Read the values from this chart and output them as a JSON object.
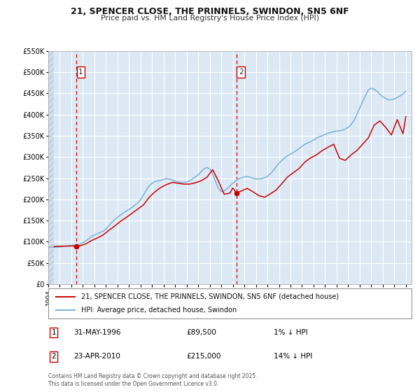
{
  "title_line1": "21, SPENCER CLOSE, THE PRINNELS, SWINDON, SN5 6NF",
  "title_line2": "Price paid vs. HM Land Registry's House Price Index (HPI)",
  "background_color": "#ffffff",
  "plot_bg_color": "#dce9f5",
  "grid_color": "#ffffff",
  "property_color": "#cc0000",
  "hpi_color": "#7ab0d4",
  "property_label": "21, SPENCER CLOSE, THE PRINNELS, SWINDON, SN5 6NF (detached house)",
  "hpi_label": "HPI: Average price, detached house, Swindon",
  "sale1_label": "1",
  "sale1_date": "31-MAY-1996",
  "sale1_price": "£89,500",
  "sale1_hpi": "1% ↓ HPI",
  "sale1_x": 1996.42,
  "sale1_y": 89500,
  "sale2_label": "2",
  "sale2_date": "23-APR-2010",
  "sale2_price": "£215,000",
  "sale2_hpi": "14% ↓ HPI",
  "sale2_x": 2010.31,
  "sale2_y": 215000,
  "vline1_x": 1996.42,
  "vline2_x": 2010.31,
  "ylim": [
    0,
    550000
  ],
  "xlim": [
    1994.0,
    2025.5
  ],
  "yticks": [
    0,
    50000,
    100000,
    150000,
    200000,
    250000,
    300000,
    350000,
    400000,
    450000,
    500000,
    550000
  ],
  "ytick_labels": [
    "£0",
    "£50K",
    "£100K",
    "£150K",
    "£200K",
    "£250K",
    "£300K",
    "£350K",
    "£400K",
    "£450K",
    "£500K",
    "£550K"
  ],
  "footer": "Contains HM Land Registry data © Crown copyright and database right 2025.\nThis data is licensed under the Open Government Licence v3.0.",
  "hpi_data_x": [
    1994.0,
    1994.25,
    1994.5,
    1994.75,
    1995.0,
    1995.25,
    1995.5,
    1995.75,
    1996.0,
    1996.25,
    1996.5,
    1996.75,
    1997.0,
    1997.25,
    1997.5,
    1997.75,
    1998.0,
    1998.25,
    1998.5,
    1998.75,
    1999.0,
    1999.25,
    1999.5,
    1999.75,
    2000.0,
    2000.25,
    2000.5,
    2000.75,
    2001.0,
    2001.25,
    2001.5,
    2001.75,
    2002.0,
    2002.25,
    2002.5,
    2002.75,
    2003.0,
    2003.25,
    2003.5,
    2003.75,
    2004.0,
    2004.25,
    2004.5,
    2004.75,
    2005.0,
    2005.25,
    2005.5,
    2005.75,
    2006.0,
    2006.25,
    2006.5,
    2006.75,
    2007.0,
    2007.25,
    2007.5,
    2007.75,
    2008.0,
    2008.25,
    2008.5,
    2008.75,
    2009.0,
    2009.25,
    2009.5,
    2009.75,
    2010.0,
    2010.25,
    2010.5,
    2010.75,
    2011.0,
    2011.25,
    2011.5,
    2011.75,
    2012.0,
    2012.25,
    2012.5,
    2012.75,
    2013.0,
    2013.25,
    2013.5,
    2013.75,
    2014.0,
    2014.25,
    2014.5,
    2014.75,
    2015.0,
    2015.25,
    2015.5,
    2015.75,
    2016.0,
    2016.25,
    2016.5,
    2016.75,
    2017.0,
    2017.25,
    2017.5,
    2017.75,
    2018.0,
    2018.25,
    2018.5,
    2018.75,
    2019.0,
    2019.25,
    2019.5,
    2019.75,
    2020.0,
    2020.25,
    2020.5,
    2020.75,
    2021.0,
    2021.25,
    2021.5,
    2021.75,
    2022.0,
    2022.25,
    2022.5,
    2022.75,
    2023.0,
    2023.25,
    2023.5,
    2023.75,
    2024.0,
    2024.25,
    2024.5,
    2024.75,
    2025.0
  ],
  "hpi_data_y": [
    88000,
    87500,
    87000,
    87500,
    88000,
    88500,
    89500,
    90500,
    91500,
    92000,
    93000,
    95000,
    98000,
    102000,
    107000,
    112000,
    116000,
    119000,
    122000,
    125000,
    130000,
    138000,
    146000,
    152000,
    158000,
    163000,
    168000,
    172000,
    176000,
    181000,
    186000,
    192000,
    199000,
    210000,
    222000,
    232000,
    238000,
    242000,
    244000,
    245000,
    247000,
    249000,
    248000,
    246000,
    243000,
    241000,
    240000,
    240000,
    241000,
    244000,
    248000,
    253000,
    258000,
    265000,
    272000,
    275000,
    272000,
    260000,
    242000,
    226000,
    218000,
    220000,
    225000,
    232000,
    238000,
    244000,
    248000,
    251000,
    253000,
    254000,
    252000,
    250000,
    248000,
    248000,
    249000,
    251000,
    254000,
    260000,
    268000,
    277000,
    285000,
    292000,
    298000,
    303000,
    307000,
    311000,
    315000,
    320000,
    325000,
    330000,
    333000,
    336000,
    340000,
    344000,
    348000,
    350000,
    353000,
    356000,
    358000,
    360000,
    361000,
    362000,
    363000,
    366000,
    370000,
    376000,
    386000,
    400000,
    415000,
    430000,
    445000,
    458000,
    462000,
    460000,
    455000,
    448000,
    442000,
    438000,
    435000,
    435000,
    437000,
    440000,
    444000,
    449000,
    455000
  ],
  "property_data_x": [
    1994.5,
    1995.0,
    1995.5,
    1996.0,
    1996.42,
    1996.75,
    1997.25,
    1997.75,
    1998.25,
    1998.75,
    1999.25,
    1999.75,
    2000.25,
    2000.75,
    2001.25,
    2001.75,
    2002.25,
    2002.75,
    2003.25,
    2003.75,
    2004.25,
    2004.75,
    2005.25,
    2005.75,
    2006.25,
    2006.75,
    2007.25,
    2007.75,
    2008.25,
    2008.75,
    2009.25,
    2009.75,
    2010.0,
    2010.31,
    2010.75,
    2011.25,
    2011.75,
    2012.25,
    2012.75,
    2013.25,
    2013.75,
    2014.25,
    2014.75,
    2015.25,
    2015.75,
    2016.25,
    2016.75,
    2017.25,
    2017.75,
    2018.25,
    2018.75,
    2019.25,
    2019.75,
    2020.25,
    2020.75,
    2021.25,
    2021.75,
    2022.25,
    2022.75,
    2023.25,
    2023.75,
    2024.25,
    2024.75,
    2025.0
  ],
  "property_data_y": [
    89000,
    89500,
    90000,
    90000,
    89500,
    90500,
    95000,
    103000,
    109000,
    116000,
    127000,
    137000,
    148000,
    157000,
    167000,
    177000,
    187000,
    205000,
    218000,
    228000,
    235000,
    240000,
    238000,
    236000,
    236000,
    239000,
    244000,
    252000,
    270000,
    243000,
    212000,
    215000,
    227000,
    215000,
    220000,
    226000,
    218000,
    209000,
    205000,
    213000,
    222000,
    237000,
    253000,
    263000,
    273000,
    288000,
    298000,
    305000,
    315000,
    323000,
    330000,
    297000,
    292000,
    305000,
    315000,
    330000,
    345000,
    375000,
    385000,
    370000,
    352000,
    388000,
    355000,
    395000
  ]
}
